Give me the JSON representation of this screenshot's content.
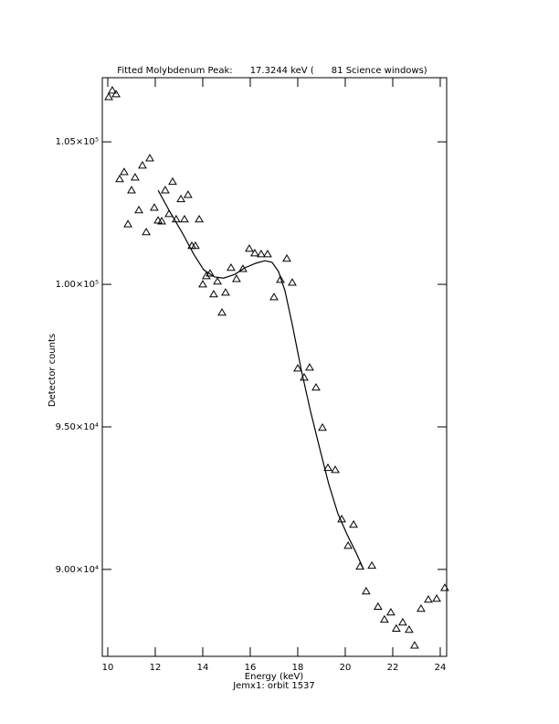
{
  "chart_data": {
    "type": "scatter",
    "title": "Fitted Molybdenum Peak:      17.3244 keV (      81 Science windows)",
    "x_label": "Energy (keV)",
    "y_label": "Detector counts",
    "subtitle": "Jemx1: orbit 1537",
    "xlim": [
      9.77,
      24.27
    ],
    "ylim": [
      86950,
      107250
    ],
    "xticks": [
      10,
      12,
      14,
      16,
      18,
      20,
      22,
      24
    ],
    "yticks": [
      {
        "value": 90000,
        "label": "9.00×10⁴"
      },
      {
        "value": 95000,
        "label": "9.50×10⁴"
      },
      {
        "value": 100000,
        "label": "1.00×10⁵"
      },
      {
        "value": 105000,
        "label": "1.05×10⁵"
      }
    ],
    "series": [
      {
        "type": "scatter",
        "marker": "triangle",
        "color": "#000000",
        "x": [
          10.04,
          10.19,
          10.35,
          10.5,
          10.69,
          10.85,
          11.0,
          11.15,
          11.31,
          11.46,
          11.62,
          11.77,
          11.96,
          12.12,
          12.27,
          12.42,
          12.58,
          12.73,
          12.88,
          13.08,
          13.23,
          13.38,
          13.54,
          13.69,
          13.85,
          14.0,
          14.15,
          14.31,
          14.46,
          14.62,
          14.81,
          14.96,
          15.19,
          15.42,
          15.69,
          15.96,
          16.19,
          16.46,
          16.73,
          17.0,
          17.27,
          17.54,
          17.77,
          18.0,
          18.27,
          18.5,
          18.77,
          19.04,
          19.27,
          19.58,
          19.85,
          20.12,
          20.35,
          20.62,
          20.88,
          21.12,
          21.38,
          21.65,
          21.92,
          22.15,
          22.42,
          22.69,
          22.92,
          23.19,
          23.5,
          23.85,
          24.19
        ],
        "values": [
          106570,
          106800,
          106670,
          103690,
          103940,
          102110,
          103300,
          103750,
          102600,
          104170,
          101830,
          104420,
          102690,
          102240,
          102210,
          103300,
          102470,
          103600,
          102280,
          102990,
          102280,
          103140,
          101350,
          101350,
          102280,
          100000,
          100290,
          100380,
          99650,
          100100,
          99010,
          99710,
          100580,
          100190,
          100540,
          101250,
          101090,
          101060,
          101060,
          99550,
          100160,
          100900,
          100060,
          97050,
          96730,
          97080,
          96380,
          94970,
          93560,
          93490,
          91760,
          90830,
          91570,
          90100,
          89230,
          90130,
          88690,
          88240,
          88490,
          87920,
          88140,
          87880,
          87330,
          88620,
          88940,
          88970,
          89350
        ]
      },
      {
        "type": "line",
        "color": "#000000",
        "x": [
          12.12,
          12.58,
          13.15,
          13.62,
          14.04,
          14.5,
          14.88,
          15.35,
          15.77,
          16.23,
          16.62,
          16.92,
          17.19,
          17.46,
          17.77,
          18.15,
          18.54,
          18.92,
          19.31,
          19.69,
          20.08,
          20.46,
          20.77
        ],
        "values": [
          103300,
          102600,
          101790,
          101060,
          100510,
          100260,
          100220,
          100350,
          100580,
          100740,
          100830,
          100770,
          100450,
          99780,
          98590,
          96990,
          95540,
          94260,
          92980,
          91960,
          91220,
          90580,
          90000
        ]
      }
    ]
  }
}
